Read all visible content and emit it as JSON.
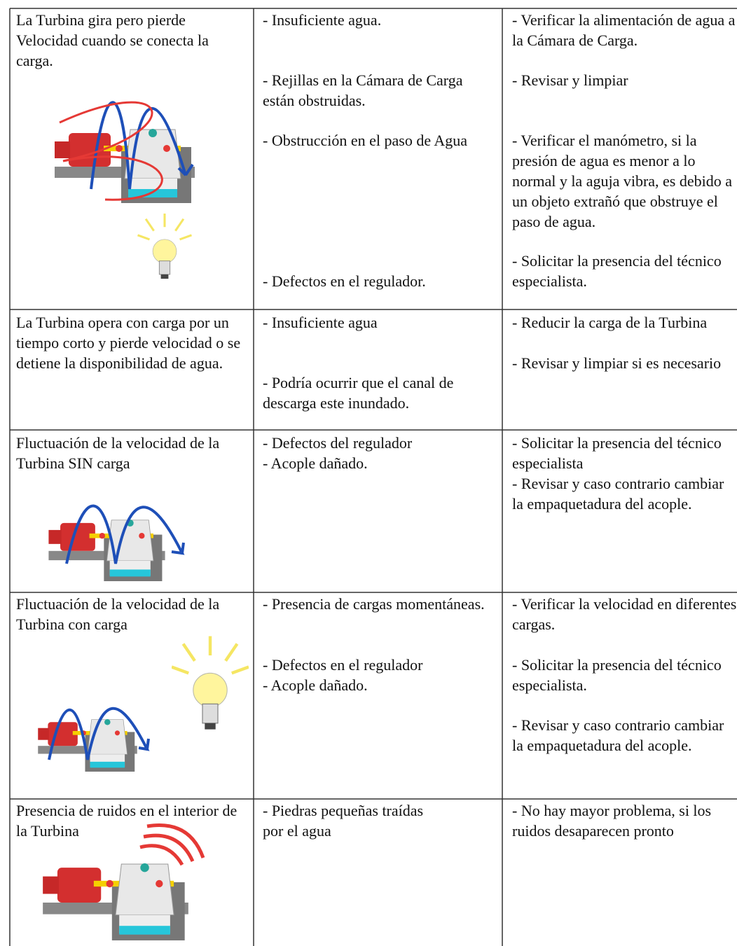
{
  "table": {
    "rows": [
      {
        "problem": "La Turbina gira pero pierde Velocidad cuando se conecta la carga.",
        "causes": [
          "- Insuficiente agua.",
          "- Rejillas en la Cámara de Carga están obstruidas.",
          "- Obstrucción en el paso de Agua",
          "- Defectos en el regulador."
        ],
        "solutions": [
          "- Verificar la alimentación de agua a la Cámara de Carga.",
          "- Revisar y limpiar",
          "- Verificar el manómetro, si la presión de agua es menor a lo normal y la aguja vibra, es debido a un objeto extrañó que obstruye el paso de agua.",
          "- Solicitar la presencia del técnico especialista."
        ]
      },
      {
        "problem": "La Turbina opera con carga por un tiempo corto y pierde velocidad o se detiene la disponibilidad de agua.",
        "causes": [
          "- Insuficiente agua",
          "- Podría ocurrir que el canal de descarga este inundado."
        ],
        "solutions": [
          "- Reducir la carga de la Turbina",
          "- Revisar y limpiar si es necesario"
        ]
      },
      {
        "problem": "Fluctuación de la velocidad de la Turbina SIN carga",
        "causes": [
          "- Defectos del regulador",
          "- Acople dañado."
        ],
        "solutions": [
          "- Solicitar la presencia del técnico especialista",
          "- Revisar y caso contrario cambiar la empaquetadura del acople."
        ]
      },
      {
        "problem": "Fluctuación de la velocidad de la Turbina con carga",
        "causes": [
          "- Presencia de cargas momentáneas.",
          "- Defectos en el regulador",
          "- Acople dañado."
        ],
        "solutions": [
          "- Verificar la velocidad en diferentes cargas.",
          "- Solicitar la presencia del técnico especialista.",
          "- Revisar y caso contrario cambiar la empaquetadura del acople."
        ]
      },
      {
        "problem": "Presencia de ruidos en el interior de la Turbina",
        "causes": [
          "- Piedras pequeñas traídas por el agua"
        ],
        "solutions": [
          "- No hay mayor problema, si los ruidos desaparecen pronto"
        ]
      }
    ]
  }
}
